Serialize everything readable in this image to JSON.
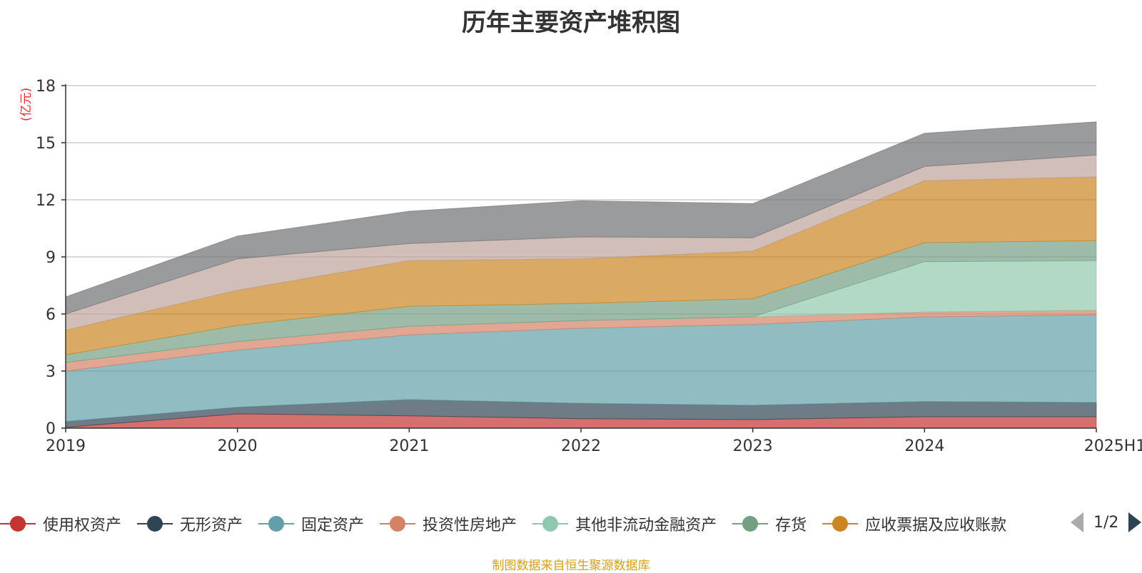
{
  "title": "历年主要资产堆积图",
  "unit": "(亿元)",
  "source": "制图数据来自恒生聚源数据库",
  "pager": {
    "text": "1/2",
    "prev_icon": "triangle-left-icon",
    "next_icon": "triangle-right-icon"
  },
  "chart_data": {
    "type": "area",
    "stacked": true,
    "title": "历年主要资产堆积图",
    "ylabel": "(亿元)",
    "ylim": [
      0,
      18
    ],
    "yticks": [
      "0",
      "3",
      "6",
      "9",
      "12",
      "15",
      "18"
    ],
    "categories": [
      "2019",
      "2020",
      "2021",
      "2022",
      "2023",
      "2024",
      "2025H1"
    ],
    "grid": true,
    "legend_position": "bottom",
    "series": [
      {
        "name": "使用权资产",
        "color": "#c23531",
        "values": [
          0.05,
          0.75,
          0.65,
          0.5,
          0.45,
          0.6,
          0.6
        ]
      },
      {
        "name": "无形资产",
        "color": "#2f4554",
        "values": [
          0.3,
          0.35,
          0.85,
          0.8,
          0.75,
          0.8,
          0.75
        ]
      },
      {
        "name": "固定资产",
        "color": "#61a0a8",
        "values": [
          2.65,
          3.0,
          3.4,
          3.95,
          4.25,
          4.45,
          4.6
        ]
      },
      {
        "name": "投资性房地产",
        "color": "#d48265",
        "values": [
          0.45,
          0.45,
          0.45,
          0.4,
          0.4,
          0.25,
          0.25
        ]
      },
      {
        "name": "其他非流动金融资产",
        "color": "#91c7ae",
        "values": [
          0.0,
          0.0,
          0.0,
          0.0,
          0.0,
          2.65,
          2.6
        ]
      },
      {
        "name": "存货",
        "color": "#749f83",
        "values": [
          0.4,
          0.85,
          1.05,
          0.9,
          0.95,
          1.0,
          1.05
        ]
      },
      {
        "name": "应收票据及应收账款",
        "color": "#ca8622",
        "values": [
          1.3,
          1.85,
          2.4,
          2.35,
          2.5,
          3.25,
          3.35
        ]
      },
      {
        "name": "",
        "color": "#bda29a",
        "values": [
          0.85,
          1.65,
          0.9,
          1.15,
          0.7,
          0.75,
          1.15
        ]
      },
      {
        "name": "",
        "color": "#6e7074",
        "values": [
          0.9,
          1.2,
          1.7,
          1.9,
          1.8,
          1.75,
          1.75
        ]
      }
    ]
  }
}
